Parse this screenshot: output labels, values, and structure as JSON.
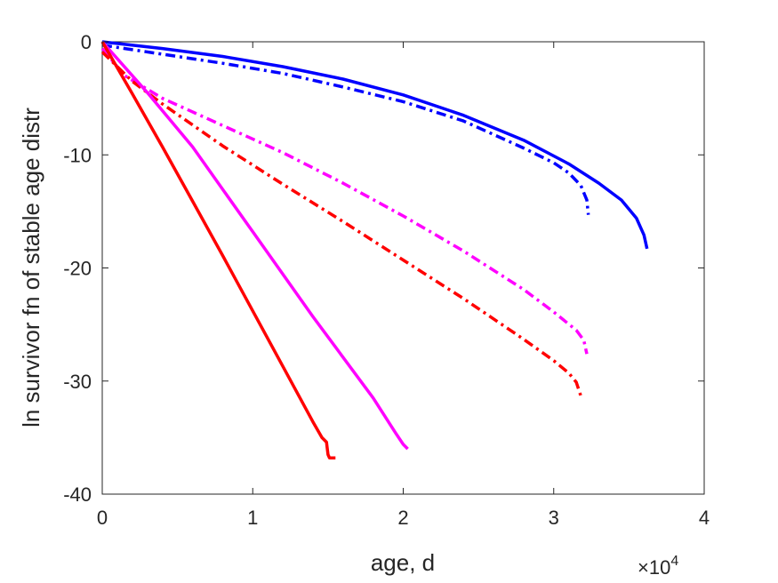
{
  "chart_data": {
    "type": "line",
    "xlabel": "age, d",
    "ylabel": "ln survivor fn of stable age distr",
    "x_multiplier": "×10",
    "x_exponent": "4",
    "xlim": [
      0,
      40000
    ],
    "ylim": [
      -40,
      0
    ],
    "xticks": [
      0,
      10000,
      20000,
      30000,
      40000
    ],
    "xtick_labels": [
      "0",
      "1",
      "2",
      "3",
      "4"
    ],
    "yticks": [
      0,
      -10,
      -20,
      -30,
      -40
    ],
    "ytick_labels": [
      "0",
      "-10",
      "-20",
      "-30",
      "-40"
    ],
    "grid": false,
    "series": [
      {
        "color": "#0000ff",
        "dash": "solid",
        "points": [
          [
            0,
            0
          ],
          [
            4000,
            -0.6
          ],
          [
            8000,
            -1.3
          ],
          [
            12000,
            -2.2
          ],
          [
            16000,
            -3.3
          ],
          [
            20000,
            -4.7
          ],
          [
            24000,
            -6.5
          ],
          [
            28000,
            -8.7
          ],
          [
            31000,
            -10.8
          ],
          [
            33000,
            -12.5
          ],
          [
            34500,
            -14.0
          ],
          [
            35500,
            -15.6
          ],
          [
            36000,
            -17.1
          ],
          [
            36200,
            -18.3
          ]
        ]
      },
      {
        "color": "#0000ff",
        "dash": "dashdot",
        "points": [
          [
            0,
            -0.3
          ],
          [
            4000,
            -1.1
          ],
          [
            8000,
            -1.9
          ],
          [
            12000,
            -2.8
          ],
          [
            16000,
            -4.0
          ],
          [
            20000,
            -5.3
          ],
          [
            24000,
            -7.0
          ],
          [
            28000,
            -9.4
          ],
          [
            30000,
            -10.7
          ],
          [
            31000,
            -11.6
          ],
          [
            31800,
            -12.7
          ],
          [
            32200,
            -14.0
          ],
          [
            32300,
            -15.3
          ]
        ]
      },
      {
        "color": "#ff00ff",
        "dash": "dashdot",
        "points": [
          [
            0,
            -0.6
          ],
          [
            1500,
            -3.0
          ],
          [
            4000,
            -5.0
          ],
          [
            8000,
            -7.4
          ],
          [
            12000,
            -9.8
          ],
          [
            16000,
            -12.5
          ],
          [
            20000,
            -15.4
          ],
          [
            24000,
            -18.5
          ],
          [
            28000,
            -21.9
          ],
          [
            30000,
            -23.9
          ],
          [
            31500,
            -25.5
          ],
          [
            32000,
            -26.4
          ],
          [
            32200,
            -27.6
          ]
        ]
      },
      {
        "color": "#ff0000",
        "dash": "dashdot",
        "points": [
          [
            0,
            -0.9
          ],
          [
            2000,
            -3.5
          ],
          [
            4000,
            -5.5
          ],
          [
            8000,
            -9.2
          ],
          [
            12000,
            -12.6
          ],
          [
            16000,
            -15.9
          ],
          [
            20000,
            -19.3
          ],
          [
            24000,
            -22.7
          ],
          [
            28000,
            -26.3
          ],
          [
            30000,
            -28.2
          ],
          [
            31000,
            -29.3
          ],
          [
            31500,
            -30.1
          ],
          [
            31800,
            -31.3
          ]
        ]
      },
      {
        "color": "#ff00ff",
        "dash": "solid",
        "points": [
          [
            0,
            0
          ],
          [
            3000,
            -4.5
          ],
          [
            6000,
            -9.3
          ],
          [
            10000,
            -16.8
          ],
          [
            14000,
            -24.3
          ],
          [
            18000,
            -31.5
          ],
          [
            19500,
            -34.6
          ],
          [
            20000,
            -35.6
          ],
          [
            20300,
            -36.0
          ]
        ]
      },
      {
        "color": "#ff0000",
        "dash": "solid",
        "points": [
          [
            0,
            0
          ],
          [
            2000,
            -4.6
          ],
          [
            4000,
            -9.3
          ],
          [
            6000,
            -14.1
          ],
          [
            8000,
            -18.9
          ],
          [
            10000,
            -23.8
          ],
          [
            12000,
            -28.7
          ],
          [
            14000,
            -33.6
          ],
          [
            14600,
            -35.0
          ],
          [
            14900,
            -35.4
          ],
          [
            15000,
            -36.5
          ],
          [
            15100,
            -36.8
          ],
          [
            15500,
            -36.8
          ]
        ]
      }
    ]
  }
}
